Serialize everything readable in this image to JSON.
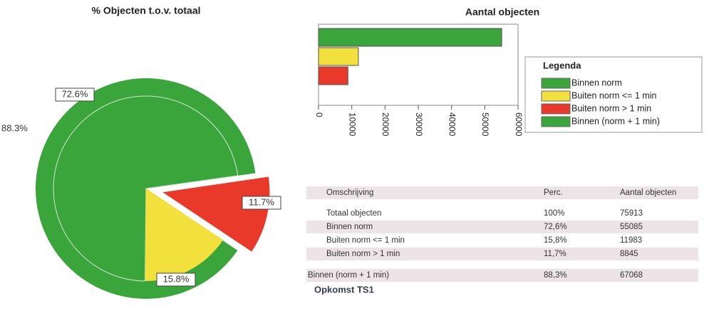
{
  "chart_data": [
    {
      "type": "pie",
      "title": "% Objecten t.o.v. totaal",
      "values": [
        72.6,
        15.8,
        11.7
      ],
      "value_labels": [
        "72.6%",
        "15.8%",
        "11.7%"
      ],
      "colors": [
        "#3aa53a",
        "#f2e03c",
        "#e8392a"
      ],
      "outer_value": 88.3,
      "outer_value_label": "88.3%",
      "outer_color": "#3aa53a"
    },
    {
      "type": "bar",
      "title": "Aantal objecten",
      "orientation": "horizontal",
      "series": [
        {
          "name": "Binnen norm",
          "color": "#3aa53a",
          "values": [
            55085
          ]
        },
        {
          "name": "Buiten norm <= 1 min",
          "color": "#f2e03c",
          "values": [
            11983
          ]
        },
        {
          "name": "Buiten norm > 1 min",
          "color": "#e8392a",
          "values": [
            8845
          ]
        },
        {
          "name": "Binnen (norm + 1 min)",
          "color": "#3aa53a",
          "values": [
            null
          ]
        }
      ],
      "legend_title": "Legenda",
      "xlim": [
        0,
        60000
      ],
      "xticks": [
        0,
        10000,
        20000,
        30000,
        40000,
        50000,
        60000
      ]
    }
  ],
  "table": {
    "header": [
      "Omschrijving",
      "Perc.",
      "Aantal objecten"
    ],
    "rows": [
      [
        "Totaal objecten",
        "100%",
        "75913"
      ],
      [
        "Binnen norm",
        "72,6%",
        "55085"
      ],
      [
        "Buiten norm <= 1 min",
        "15,8%",
        "11983"
      ],
      [
        "Buiten norm > 1 min",
        "11,7%",
        "8845"
      ]
    ],
    "summary": [
      "Binnen (norm + 1 min)",
      "88,3%",
      "67068"
    ],
    "footer": "Opkomst TS1"
  }
}
